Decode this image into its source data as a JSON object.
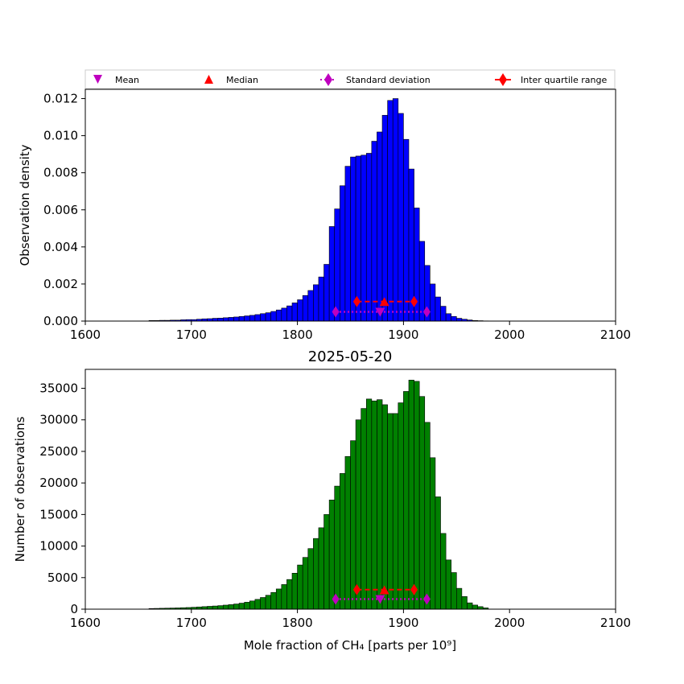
{
  "legend": {
    "mean": "Mean",
    "median": "Median",
    "std": "Standard deviation",
    "iqr": "Inter quartile range"
  },
  "colors": {
    "density_bars": "#0000ff",
    "count_bars": "#008000",
    "mean": "#bf00bf",
    "median": "#ff0000",
    "std": "#bf00bf",
    "iqr": "#ff0000"
  },
  "chart_data": [
    {
      "type": "bar",
      "title": "",
      "xlabel": "",
      "ylabel": "Observation density",
      "xlim": [
        1600,
        2100
      ],
      "ylim": [
        0,
        0.0125
      ],
      "x_ticks": [
        "1600",
        "1700",
        "1800",
        "1900",
        "2000",
        "2100"
      ],
      "y_ticks": [
        "0.000",
        "0.002",
        "0.004",
        "0.006",
        "0.008",
        "0.010",
        "0.012"
      ],
      "bin_start": 1660,
      "bin_width": 5,
      "values": [
        3e-05,
        3e-05,
        4e-05,
        4e-05,
        5e-05,
        5e-05,
        7e-05,
        8e-05,
        8e-05,
        0.0001,
        0.00012,
        0.00013,
        0.00015,
        0.00016,
        0.00018,
        0.0002,
        0.00022,
        0.00025,
        0.00028,
        0.00031,
        0.00035,
        0.0004,
        0.00045,
        0.00052,
        0.0006,
        0.0007,
        0.00082,
        0.00098,
        0.00115,
        0.00138,
        0.00165,
        0.00196,
        0.00238,
        0.00306,
        0.0051,
        0.00605,
        0.0073,
        0.00835,
        0.00885,
        0.0089,
        0.00895,
        0.00905,
        0.0097,
        0.0102,
        0.0111,
        0.0119,
        0.012,
        0.0112,
        0.0098,
        0.0082,
        0.0061,
        0.0043,
        0.003,
        0.002,
        0.0013,
        0.0008,
        0.0004,
        0.00025,
        0.00015,
        0.0001,
        6e-05,
        3e-05,
        2e-05,
        1e-05
      ],
      "stats": {
        "mean": 1878,
        "median": 1882,
        "std_range": [
          1836,
          1922
        ],
        "iqr_range": [
          1856,
          1910
        ],
        "std_y": 0.0005,
        "iqr_y": 0.00105,
        "mean_y": 0.0005,
        "median_y": 0.00103
      }
    },
    {
      "type": "bar",
      "title": "2025-05-20",
      "xlabel": "Mole fraction of CH₄ [parts per 10⁹]",
      "ylabel": "Number of observations",
      "xlim": [
        1600,
        2100
      ],
      "ylim": [
        0,
        38000
      ],
      "x_ticks": [
        "1600",
        "1700",
        "1800",
        "1900",
        "2000",
        "2100"
      ],
      "y_ticks": [
        "0",
        "5000",
        "10000",
        "15000",
        "20000",
        "25000",
        "30000",
        "35000"
      ],
      "bin_start": 1660,
      "bin_width": 5,
      "values": [
        100,
        120,
        140,
        160,
        180,
        200,
        230,
        260,
        300,
        350,
        400,
        450,
        500,
        560,
        640,
        720,
        820,
        950,
        1100,
        1300,
        1550,
        1850,
        2200,
        2650,
        3200,
        3900,
        4700,
        5700,
        7000,
        8200,
        9600,
        11200,
        12900,
        15000,
        17300,
        19500,
        21500,
        24200,
        26700,
        30000,
        31800,
        33300,
        33000,
        33200,
        32400,
        31000,
        31000,
        32700,
        34500,
        36300,
        36100,
        33700,
        29600,
        24000,
        17800,
        12000,
        7800,
        5800,
        3300,
        2000,
        1000,
        650,
        400,
        200
      ],
      "stats": {
        "mean": 1878,
        "median": 1882,
        "std_range": [
          1836,
          1922
        ],
        "iqr_range": [
          1856,
          1910
        ],
        "std_y": 1600,
        "iqr_y": 3100,
        "mean_y": 1600,
        "median_y": 3000
      }
    }
  ]
}
